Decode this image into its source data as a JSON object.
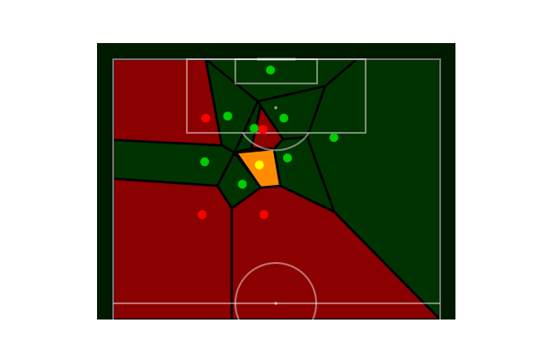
{
  "figure": {
    "description_colors": {
      "background": "#ffffff",
      "pitch_outer": "#001a00",
      "team_a_region": "#003300",
      "team_b_region": "#8b0000",
      "highlight_region": "#ff8c00",
      "team_a_player": "#00cc00",
      "team_b_player": "#ff0000",
      "ball_carrier": "#ffff00",
      "cell_border": "#000000"
    }
  },
  "chart_data": {
    "type": "scatter",
    "title": "",
    "xlabel": "",
    "ylabel": "",
    "xlim": [
      0,
      100
    ],
    "ylim": [
      0,
      100
    ],
    "grid": false,
    "series": [
      {
        "team": "A",
        "color": "#00cc00",
        "points": [
          {
            "x": 48.1,
            "y": 96.1
          },
          {
            "x": 35.0,
            "y": 79.4
          },
          {
            "x": 43.1,
            "y": 75.0
          },
          {
            "x": 52.2,
            "y": 78.7
          },
          {
            "x": 67.5,
            "y": 71.7
          },
          {
            "x": 28.0,
            "y": 62.9
          },
          {
            "x": 53.3,
            "y": 64.3
          },
          {
            "x": 39.5,
            "y": 54.8
          }
        ]
      },
      {
        "team": "B",
        "color": "#ff0000",
        "points": [
          {
            "x": 28.3,
            "y": 78.7
          },
          {
            "x": 45.8,
            "y": 74.6
          },
          {
            "x": 27.2,
            "y": 43.8
          },
          {
            "x": 46.1,
            "y": 43.8
          }
        ]
      },
      {
        "team": "ball",
        "color": "#ffff00",
        "points": [
          {
            "x": 44.7,
            "y": 61.8
          }
        ]
      }
    ]
  }
}
